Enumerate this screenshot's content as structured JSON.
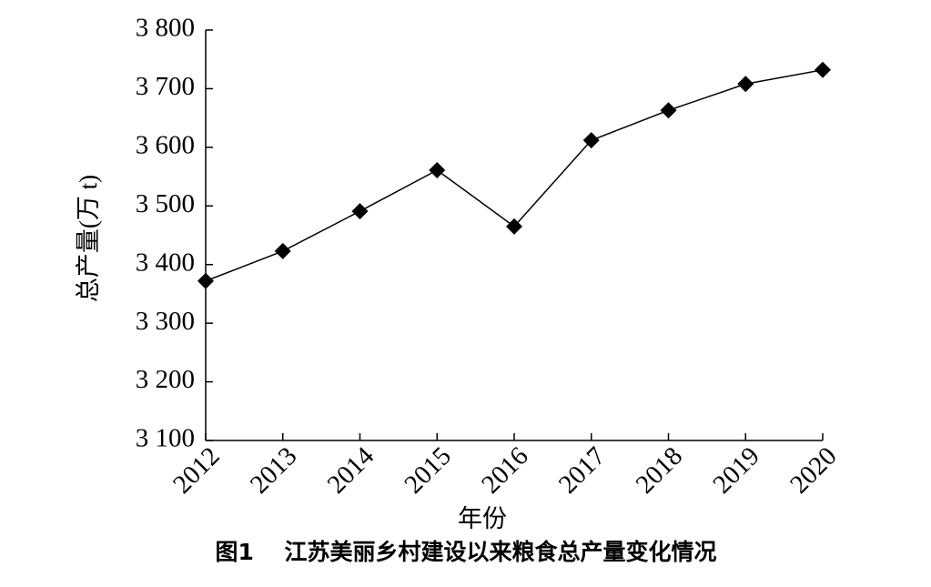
{
  "chart_data": {
    "type": "line",
    "xlabel": "年份",
    "ylabel": "总产量(万 t)",
    "caption": "图1　 江苏美丽乡村建设以来粮食总产量变化情况",
    "categories": [
      "2012",
      "2013",
      "2014",
      "2015",
      "2016",
      "2017",
      "2018",
      "2019",
      "2020"
    ],
    "series": [
      {
        "color": "#000000",
        "values": [
          3372,
          3423,
          3491,
          3561,
          3465,
          3612,
          3663,
          3708,
          3732
        ]
      }
    ],
    "ylim": [
      3100,
      3800
    ],
    "yticks": [
      {
        "value": 3100,
        "label": "3 100"
      },
      {
        "value": 3200,
        "label": "3 200"
      },
      {
        "value": 3300,
        "label": "3 300"
      },
      {
        "value": 3400,
        "label": "3 400"
      },
      {
        "value": 3500,
        "label": "3 500"
      },
      {
        "value": 3600,
        "label": "3 600"
      },
      {
        "value": 3700,
        "label": "3 700"
      },
      {
        "value": 3800,
        "label": "3 800"
      }
    ],
    "grid": false
  }
}
